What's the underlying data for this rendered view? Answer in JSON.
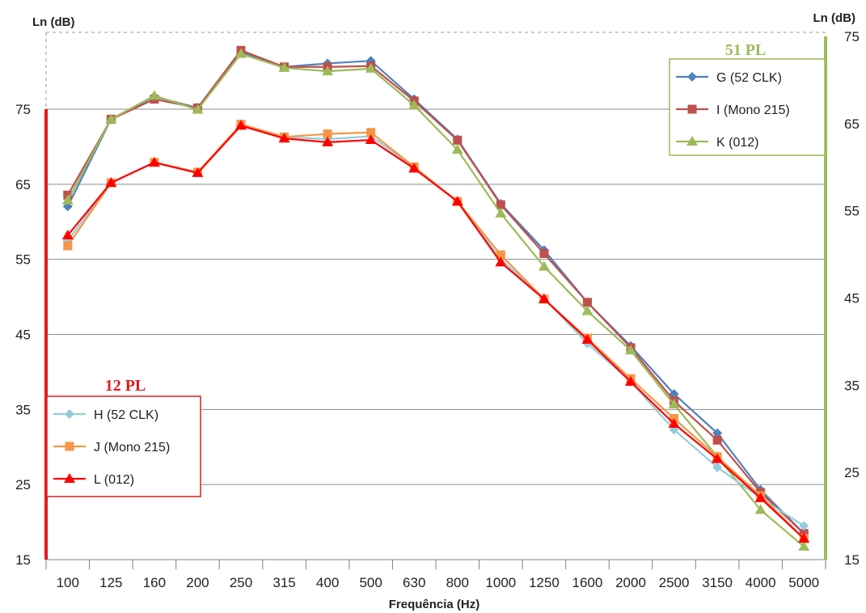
{
  "chart_data": {
    "type": "line",
    "xlabel": "Frequência (Hz)",
    "ylabel_left": "Ln (dB)",
    "ylabel_right": "Ln (dB)",
    "categories": [
      "100",
      "125",
      "160",
      "200",
      "250",
      "315",
      "400",
      "500",
      "630",
      "800",
      "1000",
      "1250",
      "1600",
      "2000",
      "2500",
      "3150",
      "4000",
      "5000"
    ],
    "left_axis": {
      "min": 15,
      "max": 75,
      "ticks": [
        15,
        25,
        35,
        45,
        55,
        65,
        75
      ],
      "color": "#e31a1c"
    },
    "right_axis": {
      "min": 15,
      "max": 75,
      "ticks": [
        15,
        25,
        35,
        45,
        55,
        65,
        75
      ],
      "color": "#9bbb59"
    },
    "grid": true,
    "groups": [
      {
        "title": "51 PL",
        "axis": "right",
        "title_color": "#9bbb59",
        "legend_position": "top-right",
        "series": [
          {
            "name": "G (52 CLK)",
            "color": "#4f81bd",
            "marker": "diamond",
            "values": [
              55.5,
              65.5,
              68.1,
              66.8,
              73.2,
              71.5,
              71.9,
              72.2,
              67.8,
              63.2,
              55.8,
              50.5,
              44.5,
              39.5,
              34.0,
              29.5,
              23.0,
              18.0
            ]
          },
          {
            "name": "I (Mono 215)",
            "color": "#c0504d",
            "marker": "square",
            "values": [
              56.8,
              65.5,
              67.8,
              66.8,
              73.4,
              71.5,
              71.5,
              71.6,
              67.6,
              63.1,
              55.7,
              50.1,
              44.5,
              39.3,
              33.2,
              28.7,
              22.7,
              18.0
            ]
          },
          {
            "name": "K (012)",
            "color": "#9bbb59",
            "marker": "triangle",
            "values": [
              56.2,
              65.5,
              68.2,
              66.6,
              73.0,
              71.4,
              71.0,
              71.3,
              67.1,
              62.0,
              54.7,
              48.6,
              43.5,
              39.0,
              32.8,
              26.8,
              20.7,
              16.5
            ]
          }
        ]
      },
      {
        "title": "12 PL",
        "axis": "left",
        "title_color": "#e31a1c",
        "legend_position": "bottom-left",
        "series": [
          {
            "name": "H (52 CLK)",
            "color": "#92cddc",
            "marker": "diamond",
            "values": [
              57.5,
              65.2,
              67.9,
              66.6,
              72.8,
              71.3,
              71.0,
              71.4,
              67.3,
              62.7,
              55.0,
              49.8,
              43.8,
              38.7,
              32.3,
              27.3,
              23.2,
              19.5
            ]
          },
          {
            "name": "J (Mono 215)",
            "color": "#f79646",
            "marker": "square",
            "values": [
              56.8,
              65.2,
              67.9,
              66.6,
              73.0,
              71.3,
              71.7,
              71.9,
              67.3,
              62.7,
              55.6,
              49.7,
              44.5,
              39.1,
              33.8,
              28.7,
              23.5,
              17.8
            ]
          },
          {
            "name": "L (012)",
            "color": "#ff0000",
            "marker": "triangle",
            "values": [
              58.2,
              65.2,
              67.9,
              66.5,
              72.8,
              71.1,
              70.6,
              70.9,
              67.1,
              62.7,
              54.6,
              49.7,
              44.3,
              38.7,
              33.1,
              28.4,
              23.2,
              17.8
            ]
          }
        ]
      }
    ]
  }
}
